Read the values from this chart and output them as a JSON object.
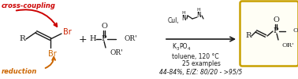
{
  "bg_color": "#ffffff",
  "cross_coupling_color": "#cc0000",
  "reduction_color": "#cc6600",
  "box_color": "#c8a000",
  "text_color": "#1a1a1a",
  "br_top_color": "#cc2200",
  "br_bot_color": "#cc6600",
  "figsize": [
    3.78,
    1.01
  ],
  "dpi": 100,
  "cross_coupling_text": "cross-coupling",
  "reduction_text": "reduction",
  "stats_line1": "25 examples",
  "stats_line2": "44-84%, E/Z: 80/20 - >95/5"
}
